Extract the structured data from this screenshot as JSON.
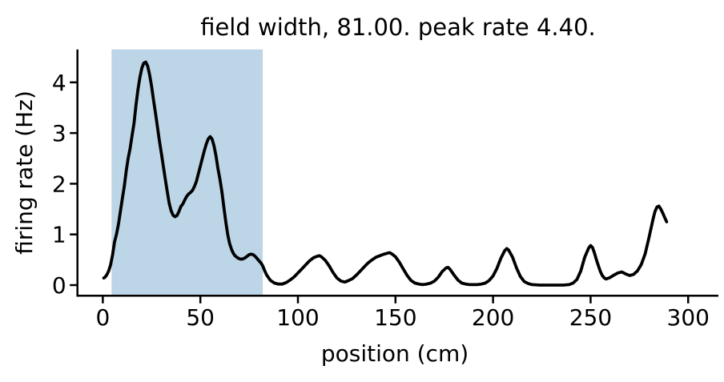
{
  "chart_data": {
    "type": "line",
    "title": "field width, 81.00. peak rate 4.40.",
    "xlabel": "position (cm)",
    "ylabel": "firing rate (Hz)",
    "xlim": [
      -13,
      315.5
    ],
    "ylim": [
      -0.21,
      4.65
    ],
    "xticks": [
      0,
      50,
      100,
      150,
      200,
      250,
      300
    ],
    "yticks": [
      0,
      1,
      2,
      3,
      4
    ],
    "grid": false,
    "legend": "none",
    "field_width_cm": 81.0,
    "peak_rate_hz": 4.4,
    "shaded_region": {
      "x_start": 4.5,
      "x_end": 82,
      "color": "#BCD6E8"
    },
    "line_style": {
      "color": "#000000",
      "width": 3.8
    },
    "series": [
      {
        "name": "firing rate",
        "points": [
          [
            0.5,
            0.14
          ],
          [
            1,
            0.15
          ],
          [
            2,
            0.2
          ],
          [
            3,
            0.28
          ],
          [
            4,
            0.4
          ],
          [
            5,
            0.6
          ],
          [
            6,
            0.85
          ],
          [
            7,
            1.0
          ],
          [
            8,
            1.2
          ],
          [
            9,
            1.45
          ],
          [
            10,
            1.7
          ],
          [
            11,
            1.95
          ],
          [
            12,
            2.25
          ],
          [
            13,
            2.5
          ],
          [
            14,
            2.7
          ],
          [
            15,
            2.95
          ],
          [
            16,
            3.2
          ],
          [
            17,
            3.55
          ],
          [
            18,
            3.85
          ],
          [
            19,
            4.1
          ],
          [
            20,
            4.28
          ],
          [
            21,
            4.38
          ],
          [
            22,
            4.4
          ],
          [
            23,
            4.32
          ],
          [
            24,
            4.15
          ],
          [
            25,
            3.92
          ],
          [
            26,
            3.65
          ],
          [
            27,
            3.4
          ],
          [
            28,
            3.12
          ],
          [
            29,
            2.85
          ],
          [
            30,
            2.6
          ],
          [
            31,
            2.35
          ],
          [
            32,
            2.1
          ],
          [
            33,
            1.85
          ],
          [
            34,
            1.62
          ],
          [
            35,
            1.47
          ],
          [
            36,
            1.38
          ],
          [
            37,
            1.35
          ],
          [
            38,
            1.37
          ],
          [
            39,
            1.45
          ],
          [
            40,
            1.55
          ],
          [
            41,
            1.6
          ],
          [
            42,
            1.68
          ],
          [
            43,
            1.75
          ],
          [
            44,
            1.8
          ],
          [
            45,
            1.83
          ],
          [
            46,
            1.87
          ],
          [
            47,
            1.95
          ],
          [
            48,
            2.05
          ],
          [
            49,
            2.2
          ],
          [
            50,
            2.35
          ],
          [
            51,
            2.5
          ],
          [
            52,
            2.65
          ],
          [
            53,
            2.78
          ],
          [
            54,
            2.88
          ],
          [
            55,
            2.93
          ],
          [
            56,
            2.88
          ],
          [
            57,
            2.75
          ],
          [
            58,
            2.55
          ],
          [
            59,
            2.3
          ],
          [
            60,
            2.1
          ],
          [
            61,
            1.85
          ],
          [
            62,
            1.55
          ],
          [
            63,
            1.25
          ],
          [
            64,
            1.0
          ],
          [
            65,
            0.82
          ],
          [
            66,
            0.7
          ],
          [
            67,
            0.62
          ],
          [
            68,
            0.57
          ],
          [
            69,
            0.54
          ],
          [
            70,
            0.52
          ],
          [
            71,
            0.51
          ],
          [
            72,
            0.52
          ],
          [
            73,
            0.54
          ],
          [
            74,
            0.57
          ],
          [
            75,
            0.6
          ],
          [
            76,
            0.61
          ],
          [
            77,
            0.6
          ],
          [
            78,
            0.57
          ],
          [
            79,
            0.53
          ],
          [
            80,
            0.48
          ],
          [
            81,
            0.44
          ],
          [
            82,
            0.38
          ],
          [
            83,
            0.28
          ],
          [
            84,
            0.2
          ],
          [
            85,
            0.14
          ],
          [
            86,
            0.09
          ],
          [
            88,
            0.04
          ],
          [
            90,
            0.02
          ],
          [
            92,
            0.02
          ],
          [
            94,
            0.05
          ],
          [
            96,
            0.1
          ],
          [
            98,
            0.16
          ],
          [
            100,
            0.24
          ],
          [
            102,
            0.32
          ],
          [
            104,
            0.4
          ],
          [
            106,
            0.48
          ],
          [
            108,
            0.54
          ],
          [
            110,
            0.57
          ],
          [
            111,
            0.58
          ],
          [
            112,
            0.56
          ],
          [
            114,
            0.49
          ],
          [
            116,
            0.38
          ],
          [
            118,
            0.25
          ],
          [
            120,
            0.14
          ],
          [
            122,
            0.08
          ],
          [
            124,
            0.06
          ],
          [
            126,
            0.09
          ],
          [
            128,
            0.13
          ],
          [
            130,
            0.2
          ],
          [
            132,
            0.28
          ],
          [
            134,
            0.36
          ],
          [
            136,
            0.44
          ],
          [
            138,
            0.5
          ],
          [
            140,
            0.55
          ],
          [
            142,
            0.58
          ],
          [
            144,
            0.61
          ],
          [
            146,
            0.63
          ],
          [
            147,
            0.64
          ],
          [
            148,
            0.62
          ],
          [
            150,
            0.56
          ],
          [
            152,
            0.45
          ],
          [
            154,
            0.32
          ],
          [
            156,
            0.19
          ],
          [
            158,
            0.09
          ],
          [
            160,
            0.04
          ],
          [
            162,
            0.02
          ],
          [
            164,
            0.01
          ],
          [
            166,
            0.02
          ],
          [
            168,
            0.04
          ],
          [
            170,
            0.08
          ],
          [
            172,
            0.16
          ],
          [
            174,
            0.27
          ],
          [
            176,
            0.34
          ],
          [
            177,
            0.35
          ],
          [
            178,
            0.31
          ],
          [
            180,
            0.2
          ],
          [
            182,
            0.1
          ],
          [
            184,
            0.04
          ],
          [
            186,
            0.02
          ],
          [
            188,
            0.01
          ],
          [
            190,
            0.01
          ],
          [
            192,
            0.01
          ],
          [
            194,
            0.02
          ],
          [
            196,
            0.04
          ],
          [
            198,
            0.09
          ],
          [
            200,
            0.18
          ],
          [
            202,
            0.33
          ],
          [
            204,
            0.53
          ],
          [
            206,
            0.68
          ],
          [
            207,
            0.72
          ],
          [
            208,
            0.69
          ],
          [
            210,
            0.55
          ],
          [
            212,
            0.34
          ],
          [
            214,
            0.17
          ],
          [
            216,
            0.07
          ],
          [
            218,
            0.03
          ],
          [
            220,
            0.01
          ],
          [
            224,
            0
          ],
          [
            228,
            0
          ],
          [
            232,
            0
          ],
          [
            236,
            0
          ],
          [
            239,
            0.01
          ],
          [
            241,
            0.04
          ],
          [
            243,
            0.11
          ],
          [
            245,
            0.28
          ],
          [
            247,
            0.55
          ],
          [
            249,
            0.73
          ],
          [
            250,
            0.78
          ],
          [
            251,
            0.74
          ],
          [
            252,
            0.63
          ],
          [
            253,
            0.5
          ],
          [
            254,
            0.38
          ],
          [
            255,
            0.27
          ],
          [
            256,
            0.19
          ],
          [
            257,
            0.14
          ],
          [
            258,
            0.12
          ],
          [
            260,
            0.15
          ],
          [
            262,
            0.2
          ],
          [
            264,
            0.24
          ],
          [
            266,
            0.26
          ],
          [
            268,
            0.22
          ],
          [
            270,
            0.19
          ],
          [
            272,
            0.21
          ],
          [
            274,
            0.28
          ],
          [
            276,
            0.41
          ],
          [
            278,
            0.62
          ],
          [
            280,
            0.95
          ],
          [
            282,
            1.3
          ],
          [
            283,
            1.45
          ],
          [
            284,
            1.54
          ],
          [
            285,
            1.56
          ],
          [
            286,
            1.5
          ],
          [
            287,
            1.42
          ],
          [
            288,
            1.33
          ],
          [
            289,
            1.25
          ]
        ]
      }
    ]
  }
}
